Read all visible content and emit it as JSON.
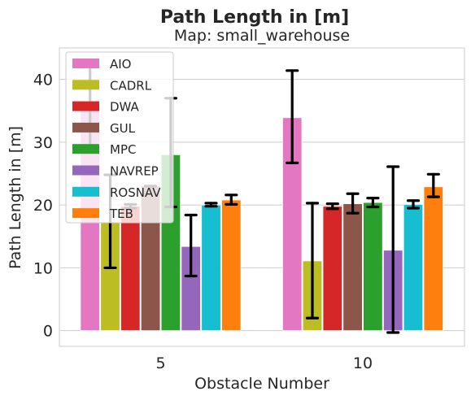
{
  "chart_data": {
    "type": "bar",
    "title": "Path Length in [m]",
    "subtitle": "Map: small_warehouse",
    "xlabel": "Obstacle Number",
    "ylabel": "Path Length in [m]",
    "categories": [
      "5",
      "10"
    ],
    "ylim": [
      -2.5,
      45
    ],
    "yticks": [
      0,
      10,
      20,
      30,
      40
    ],
    "grid": true,
    "legend_position": "top-left",
    "series": [
      {
        "name": "AIO",
        "color": "#e377c2",
        "values": [
          36.3,
          33.9
        ],
        "err_low": [
          29.3,
          26.7
        ],
        "err_high": [
          43.0,
          41.4
        ]
      },
      {
        "name": "CADRL",
        "color": "#bcbd22",
        "values": [
          17.2,
          11.1
        ],
        "err_low": [
          10.0,
          2.0
        ],
        "err_high": [
          24.8,
          20.3
        ]
      },
      {
        "name": "DWA",
        "color": "#d62728",
        "values": [
          19.8,
          19.8
        ],
        "err_low": [
          19.5,
          19.4
        ],
        "err_high": [
          20.1,
          20.2
        ]
      },
      {
        "name": "GUL",
        "color": "#8c564b",
        "values": [
          23.0,
          20.2
        ],
        "err_low": [
          23.0,
          18.7
        ],
        "err_high": [
          23.0,
          21.8
        ]
      },
      {
        "name": "MPC",
        "color": "#2ca02c",
        "values": [
          28.0,
          20.4
        ],
        "err_low": [
          19.7,
          19.7
        ],
        "err_high": [
          37.0,
          21.1
        ]
      },
      {
        "name": "NAVREP",
        "color": "#9467bd",
        "values": [
          13.4,
          12.8
        ],
        "err_low": [
          8.7,
          -0.3
        ],
        "err_high": [
          18.4,
          26.1
        ]
      },
      {
        "name": "ROSNAV",
        "color": "#17becf",
        "values": [
          20.0,
          20.1
        ],
        "err_low": [
          19.8,
          19.5
        ],
        "err_high": [
          20.3,
          20.7
        ]
      },
      {
        "name": "TEB",
        "color": "#ff7f0e",
        "values": [
          20.8,
          22.9
        ],
        "err_low": [
          20.1,
          21.3
        ],
        "err_high": [
          21.6,
          24.9
        ]
      }
    ]
  }
}
